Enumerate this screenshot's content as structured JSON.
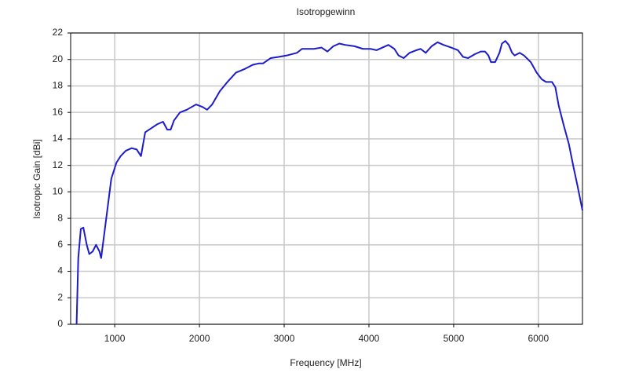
{
  "chart_data": {
    "type": "line",
    "title": "Isotropgewinn",
    "x_label": "Frequency [MHz]",
    "y_label": "Isotropic Gain [dBi]",
    "x": [
      550,
      570,
      600,
      630,
      670,
      700,
      740,
      780,
      820,
      840,
      880,
      920,
      960,
      1020,
      1070,
      1130,
      1200,
      1260,
      1310,
      1360,
      1430,
      1500,
      1570,
      1620,
      1660,
      1700,
      1770,
      1850,
      1960,
      2040,
      2090,
      2150,
      2240,
      2330,
      2430,
      2540,
      2630,
      2700,
      2750,
      2840,
      2940,
      3030,
      3150,
      3210,
      3350,
      3440,
      3510,
      3580,
      3650,
      3720,
      3830,
      3930,
      4020,
      4090,
      4160,
      4230,
      4300,
      4350,
      4410,
      4480,
      4560,
      4610,
      4670,
      4740,
      4810,
      4880,
      4970,
      5050,
      5110,
      5170,
      5250,
      5320,
      5370,
      5410,
      5440,
      5490,
      5540,
      5570,
      5610,
      5650,
      5690,
      5720,
      5780,
      5830,
      5910,
      5980,
      6040,
      6090,
      6160,
      6200,
      6240,
      6300,
      6360,
      6410,
      6460,
      6520
    ],
    "values": [
      0,
      5,
      7.2,
      7.3,
      6,
      5.3,
      5.5,
      6,
      5.5,
      5,
      7,
      9,
      11,
      12.2,
      12.7,
      13.1,
      13.3,
      13.2,
      12.7,
      14.5,
      14.8,
      15.1,
      15.3,
      14.7,
      14.7,
      15.4,
      16,
      16.2,
      16.6,
      16.4,
      16.2,
      16.6,
      17.6,
      18.3,
      19,
      19.3,
      19.6,
      19.7,
      19.7,
      20.1,
      20.2,
      20.3,
      20.5,
      20.8,
      20.8,
      20.9,
      20.6,
      21,
      21.2,
      21.1,
      21,
      20.8,
      20.8,
      20.7,
      20.9,
      21.1,
      20.8,
      20.3,
      20.1,
      20.5,
      20.7,
      20.8,
      20.5,
      21,
      21.3,
      21.1,
      20.9,
      20.7,
      20.2,
      20.1,
      20.4,
      20.6,
      20.6,
      20.3,
      19.8,
      19.8,
      20.5,
      21.2,
      21.4,
      21.1,
      20.5,
      20.3,
      20.5,
      20.3,
      19.8,
      19,
      18.5,
      18.3,
      18.3,
      17.9,
      16.5,
      15,
      13.6,
      12,
      10.5,
      8.6
    ],
    "color": "#1c1ccc",
    "xlim": [
      480,
      6520
    ],
    "ylim": [
      0,
      22
    ],
    "xticks": [
      1000,
      2000,
      3000,
      4000,
      5000,
      6000
    ],
    "yticks": [
      0,
      2,
      4,
      6,
      8,
      10,
      12,
      14,
      16,
      18,
      20,
      22
    ],
    "grid": true
  }
}
